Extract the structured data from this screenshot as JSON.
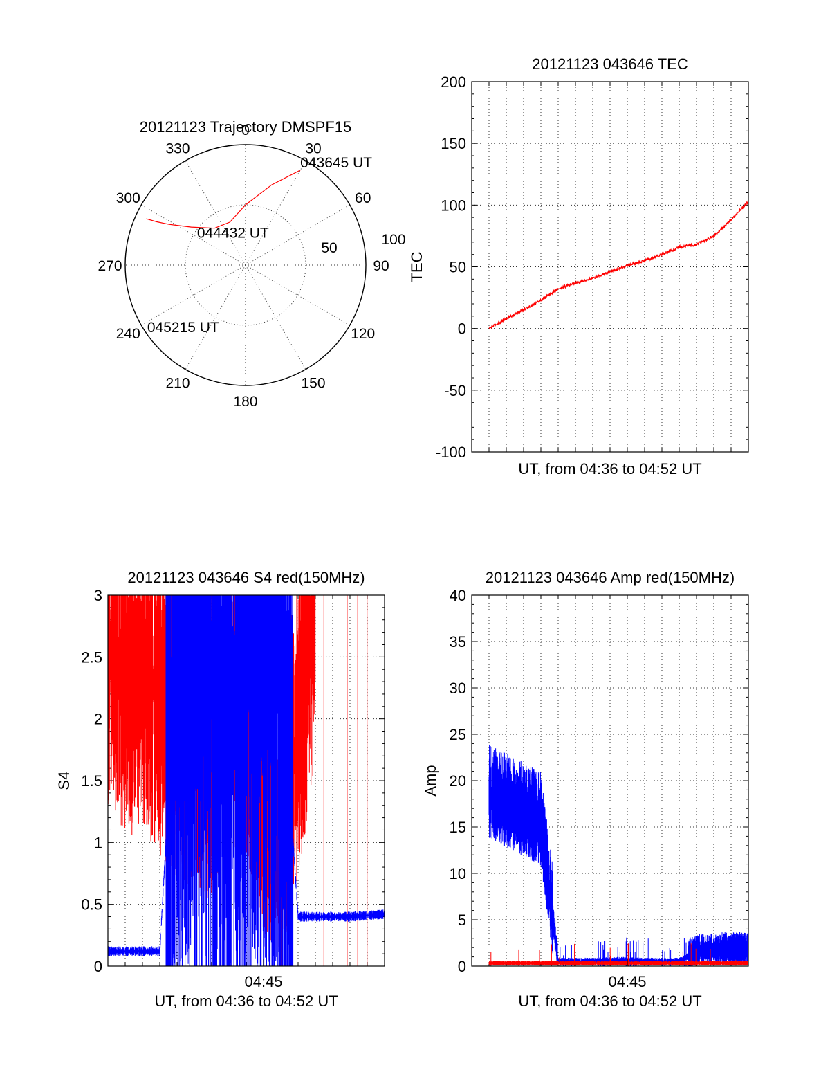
{
  "chart_data": [
    {
      "type": "polar",
      "title": "20121123 Trajectory DMSPF15",
      "angle_ticks": [
        "0",
        "30",
        "60",
        "90",
        "120",
        "150",
        "180",
        "210",
        "240",
        "270",
        "300",
        "330"
      ],
      "radial_ticks": [
        50,
        100
      ],
      "radial_max": 100,
      "grid": true,
      "labels": [
        {
          "text": "043645 UT",
          "azimuth": 30,
          "zenith": 91
        },
        {
          "text": "044432 UT",
          "azimuth": 300,
          "zenith": 20
        },
        {
          "text": "045215 UT",
          "azimuth": 240,
          "zenith": 91
        }
      ],
      "series": [
        {
          "color": "#ff0000",
          "points": [
            [
              30,
              91
            ],
            [
              18,
              70
            ],
            [
              0,
              50
            ],
            [
              -20,
              38
            ],
            [
              -40,
              40
            ],
            [
              -55,
              55
            ],
            [
              -62,
              72
            ],
            [
              -64,
              82
            ],
            [
              -65,
              91
            ]
          ]
        }
      ]
    },
    {
      "type": "line",
      "title": "20121123 043646 TEC",
      "xlabel": "UT, from 04:36 to 04:52 UT",
      "ylabel": "TEC",
      "ylim": [
        -100,
        200
      ],
      "yticks": [
        -100,
        -50,
        0,
        50,
        100,
        150,
        200
      ],
      "xlim": [
        "04:36",
        "04:52"
      ],
      "grid": true,
      "series": [
        {
          "color": "#ff0000",
          "x": [
            "04:37",
            "04:38",
            "04:39",
            "04:40",
            "04:41",
            "04:42",
            "04:43",
            "04:44",
            "04:45",
            "04:46",
            "04:47",
            "04:48",
            "04:49",
            "04:50",
            "04:51",
            "04:52"
          ],
          "values": [
            0,
            8,
            15,
            23,
            32,
            37,
            41,
            46,
            51,
            55,
            60,
            66,
            68,
            75,
            88,
            103
          ]
        }
      ]
    },
    {
      "type": "line",
      "title": "20121123 043646 S4 red(150MHz)",
      "xlabel": "UT, from 04:36 to 04:52 UT",
      "ylabel": "S4",
      "ylim": [
        0,
        3
      ],
      "yticks": [
        0,
        0.5,
        1,
        1.5,
        2,
        2.5,
        3
      ],
      "yticklabels": [
        "0",
        "0.5",
        "1",
        "1.5",
        "2",
        "2.5",
        "3"
      ],
      "xlim": [
        "04:36",
        "04:52"
      ],
      "xticklabels": [
        "04:45"
      ],
      "grid": true,
      "series": [
        {
          "color": "#ff0000",
          "x": [
            "04:36",
            "04:37",
            "04:38",
            "04:39",
            "04:40",
            "04:42",
            "04:43",
            "04:44",
            "04:45",
            "04:46",
            "04:48",
            "04:49",
            "04:50",
            "04:51",
            "04:52"
          ],
          "values": [
            2.6,
            2.3,
            2.4,
            2.2,
            2.0,
            1.8,
            2.2,
            2.1,
            1.6,
            0.9,
            3.0,
            3.0,
            3.0,
            3.0,
            3.0
          ]
        },
        {
          "color": "#0000ff",
          "x": [
            "04:36",
            "04:37",
            "04:38",
            "04:39",
            "04:40",
            "04:41",
            "04:42",
            "04:43",
            "04:44",
            "04:45",
            "04:46",
            "04:47",
            "04:48",
            "04:49",
            "04:50",
            "04:51",
            "04:52"
          ],
          "values": [
            0.12,
            0.12,
            0.12,
            0.12,
            2.6,
            2.8,
            2.4,
            1.9,
            2.6,
            2.7,
            2.5,
            0.4,
            0.4,
            0.4,
            0.4,
            0.41,
            0.42
          ]
        }
      ]
    },
    {
      "type": "line",
      "title": "20121123 043646 Amp red(150MHz)",
      "xlabel": "UT, from 04:36 to 04:52 UT",
      "ylabel": "Amp",
      "ylim": [
        0,
        40
      ],
      "yticks": [
        0,
        5,
        10,
        15,
        20,
        25,
        30,
        35,
        40
      ],
      "xlim": [
        "04:36",
        "04:52"
      ],
      "xticklabels": [
        "04:45"
      ],
      "grid": true,
      "series": [
        {
          "color": "#0000ff",
          "x": [
            "04:37",
            "04:38",
            "04:39",
            "04:40",
            "04:41",
            "04:42",
            "04:43",
            "04:44",
            "04:45",
            "04:46",
            "04:47",
            "04:48",
            "04:49",
            "04:50",
            "04:51",
            "04:52"
          ],
          "values": [
            18,
            17,
            16,
            15,
            0.5,
            0.5,
            0.5,
            0.6,
            0.6,
            0.5,
            0.5,
            0.5,
            1.5,
            1.6,
            1.7,
            1.7
          ]
        },
        {
          "color": "#ff0000",
          "x": [
            "04:37",
            "04:38",
            "04:39",
            "04:40",
            "04:41",
            "04:42",
            "04:43",
            "04:44",
            "04:45",
            "04:46",
            "04:47",
            "04:48",
            "04:49",
            "04:50",
            "04:51",
            "04:52"
          ],
          "values": [
            0.3,
            0.3,
            0.3,
            0.3,
            0.3,
            0.3,
            0.3,
            0.3,
            0.3,
            0.3,
            0.3,
            0.3,
            0.3,
            0.3,
            0.3,
            0.3
          ]
        }
      ]
    }
  ]
}
